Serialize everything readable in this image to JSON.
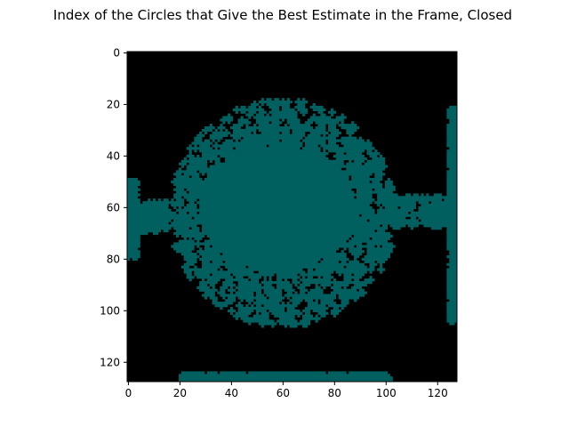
{
  "chart_data": {
    "type": "heatmap",
    "title": "Index of the Circles that Give the Best Estimate in the Frame, Closed",
    "xlabel": "",
    "ylabel": "",
    "xlim": [
      0,
      128
    ],
    "ylim": [
      128,
      0
    ],
    "x_ticks": [
      0,
      20,
      40,
      60,
      80,
      100,
      120
    ],
    "y_ticks": [
      0,
      20,
      40,
      60,
      80,
      100,
      120
    ],
    "grid": false,
    "grid_size": [
      128,
      128
    ],
    "background_value": 0,
    "foreground_value": 1,
    "colors": {
      "background": "#000000",
      "foreground": "#006060"
    },
    "regions": [
      {
        "name": "central-blob-core",
        "shape": "ellipse",
        "cx": 58,
        "cy": 60,
        "rx": 30,
        "ry": 24,
        "fill": 1.0
      },
      {
        "name": "central-blob-fringe",
        "shape": "ellipse",
        "cx": 60,
        "cy": 62,
        "rx": 44,
        "ry": 44,
        "fill": 0.35
      },
      {
        "name": "left-strip",
        "shape": "rect",
        "x": [
          0,
          4
        ],
        "y": [
          50,
          80
        ],
        "fill": 0.8
      },
      {
        "name": "left-bridge",
        "shape": "rect",
        "x": [
          4,
          16
        ],
        "y": [
          58,
          70
        ],
        "fill": 0.5
      },
      {
        "name": "right-edge",
        "shape": "rect",
        "x": [
          125,
          128
        ],
        "y": [
          22,
          105
        ],
        "fill": 0.9
      },
      {
        "name": "right-bridge",
        "shape": "rect",
        "x": [
          100,
          125
        ],
        "y": [
          56,
          68
        ],
        "fill": 0.4
      },
      {
        "name": "bottom-edge",
        "shape": "rect",
        "x": [
          21,
          102
        ],
        "y": [
          125,
          128
        ],
        "fill": 0.9
      }
    ]
  }
}
